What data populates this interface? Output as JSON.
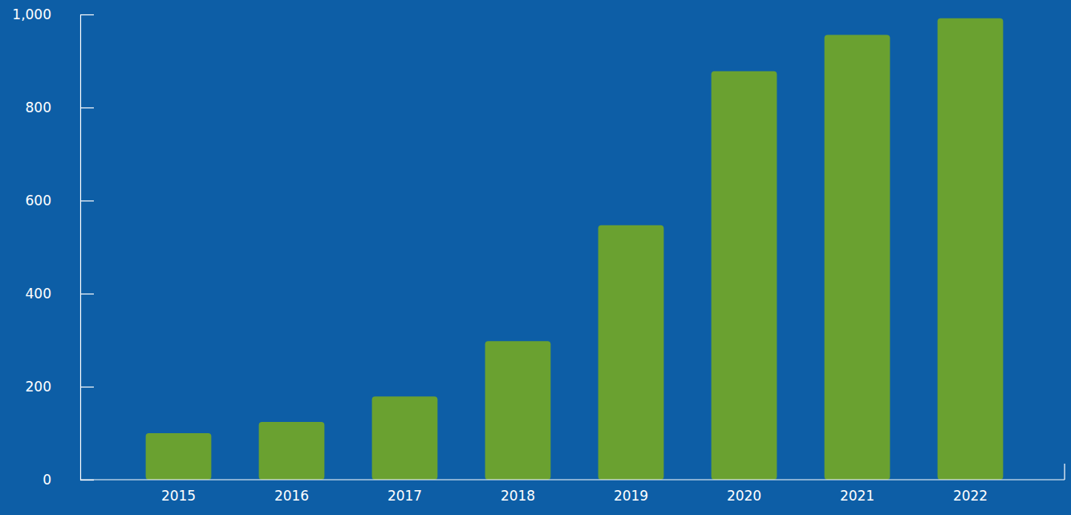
{
  "chart_data": {
    "type": "bar",
    "categories": [
      "2015",
      "2016",
      "2017",
      "2018",
      "2019",
      "2020",
      "2021",
      "2022"
    ],
    "values": [
      100,
      124,
      179,
      298,
      547,
      878,
      956,
      992
    ],
    "color": "#6aa130",
    "ylim": [
      0,
      1000
    ],
    "yticks": [
      0,
      200,
      400,
      600,
      800,
      {
        "value": 1000,
        "label": "1,000"
      }
    ],
    "grid": false
  }
}
